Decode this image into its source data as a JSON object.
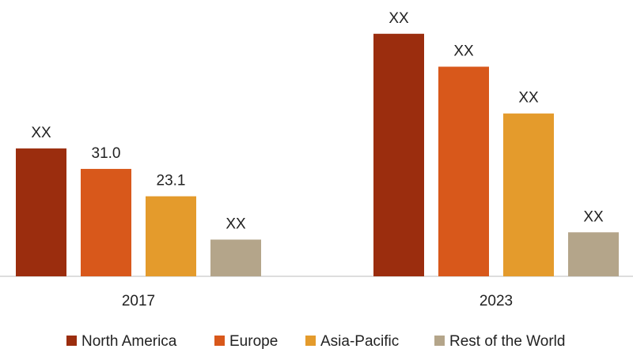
{
  "chart_data": {
    "type": "bar",
    "title": "",
    "xlabel": "",
    "ylabel": "",
    "categories": [
      "2017",
      "2023"
    ],
    "ylim": [
      0,
      72
    ],
    "grid": false,
    "legend_position": "bottom",
    "series": [
      {
        "name": "North America",
        "color": "#9B2D0E",
        "values": [
          36.9,
          70.0
        ],
        "labels": [
          "XX",
          "XX"
        ]
      },
      {
        "name": "Europe",
        "color": "#D8581B",
        "values": [
          31.0,
          60.5
        ],
        "labels": [
          "31.0",
          "XX"
        ]
      },
      {
        "name": "Asia-Pacific",
        "color": "#E49B2C",
        "values": [
          23.1,
          47.0
        ],
        "labels": [
          "23.1",
          "XX"
        ]
      },
      {
        "name": "Rest of the World",
        "color": "#B4A58A",
        "values": [
          10.6,
          12.7
        ],
        "labels": [
          "XX",
          "XX"
        ]
      }
    ]
  }
}
